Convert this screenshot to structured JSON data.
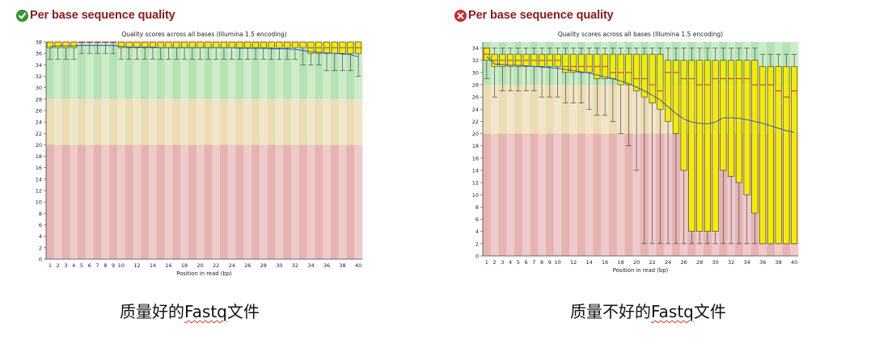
{
  "panels": [
    {
      "status": "pass",
      "status_icon": "check-circle-icon",
      "status_color": "#2e9e2e",
      "header_title": "Per base sequence quality",
      "caption_prefix": "质量好的",
      "caption_keyword": "Fastq",
      "caption_suffix": "文件"
    },
    {
      "status": "fail",
      "status_icon": "cross-circle-icon",
      "status_color": "#d62a2a",
      "header_title": "Per base sequence quality",
      "caption_prefix": "质量不好的",
      "caption_keyword": "Fastq",
      "caption_suffix": "文件"
    }
  ],
  "chart_data": [
    {
      "type": "boxplot",
      "title": "Quality scores across all bases (Illumina 1.5 encoding)",
      "xlabel": "Position in read (bp)",
      "ylabel": "",
      "ylim": [
        0,
        38
      ],
      "yticks": [
        0,
        2,
        4,
        6,
        8,
        10,
        12,
        14,
        16,
        18,
        20,
        22,
        24,
        26,
        28,
        30,
        32,
        34,
        36,
        38
      ],
      "xtick_labels": [
        "1",
        "2",
        "3",
        "4",
        "5",
        "6",
        "7",
        "8",
        "9",
        "10",
        "12",
        "14",
        "16",
        "18",
        "20",
        "22",
        "24",
        "26",
        "28",
        "30",
        "32",
        "34",
        "36",
        "38",
        "40"
      ],
      "bands": [
        {
          "from": 28,
          "to": 38,
          "color": "#b6e3b6",
          "alt": "#cdecc9"
        },
        {
          "from": 20,
          "to": 28,
          "color": "#ecdcb3",
          "alt": "#f1e6c9"
        },
        {
          "from": 0,
          "to": 20,
          "color": "#e6b3b3",
          "alt": "#efcaca"
        }
      ],
      "box_color": "#f5ec00",
      "median_color": "#cc3030",
      "mean_color": "#3048b8",
      "boxes": [
        {
          "low": 35,
          "q1": 37,
          "median": 38,
          "q3": 38,
          "high": 38,
          "mean": 37.2
        },
        {
          "low": 35,
          "q1": 37,
          "median": 38,
          "q3": 38,
          "high": 38,
          "mean": 37.3
        },
        {
          "low": 35,
          "q1": 37,
          "median": 38,
          "q3": 38,
          "high": 38,
          "mean": 37.3
        },
        {
          "low": 35,
          "q1": 37,
          "median": 38,
          "q3": 38,
          "high": 38,
          "mean": 37.3
        },
        {
          "low": 36,
          "q1": 38,
          "median": 38,
          "q3": 38,
          "high": 38,
          "mean": 37.4
        },
        {
          "low": 36,
          "q1": 38,
          "median": 38,
          "q3": 38,
          "high": 38,
          "mean": 37.4
        },
        {
          "low": 36,
          "q1": 38,
          "median": 38,
          "q3": 38,
          "high": 38,
          "mean": 37.4
        },
        {
          "low": 36,
          "q1": 38,
          "median": 38,
          "q3": 38,
          "high": 38,
          "mean": 37.4
        },
        {
          "low": 36,
          "q1": 38,
          "median": 38,
          "q3": 38,
          "high": 38,
          "mean": 37.4
        },
        {
          "low": 35,
          "q1": 37,
          "median": 38,
          "q3": 38,
          "high": 38,
          "mean": 37.2
        },
        {
          "low": 35,
          "q1": 37,
          "median": 38,
          "q3": 38,
          "high": 38,
          "mean": 37.1
        },
        {
          "low": 35,
          "q1": 37,
          "median": 38,
          "q3": 38,
          "high": 38,
          "mean": 37.1
        },
        {
          "low": 35,
          "q1": 37,
          "median": 38,
          "q3": 38,
          "high": 38,
          "mean": 37.1
        },
        {
          "low": 35,
          "q1": 37,
          "median": 38,
          "q3": 38,
          "high": 38,
          "mean": 37.1
        },
        {
          "low": 35,
          "q1": 37,
          "median": 38,
          "q3": 38,
          "high": 38,
          "mean": 37.0
        },
        {
          "low": 35,
          "q1": 37,
          "median": 38,
          "q3": 38,
          "high": 38,
          "mean": 37.0
        },
        {
          "low": 35,
          "q1": 37,
          "median": 38,
          "q3": 38,
          "high": 38,
          "mean": 37.0
        },
        {
          "low": 35,
          "q1": 37,
          "median": 38,
          "q3": 38,
          "high": 38,
          "mean": 37.0
        },
        {
          "low": 35,
          "q1": 37,
          "median": 38,
          "q3": 38,
          "high": 38,
          "mean": 37.0
        },
        {
          "low": 35,
          "q1": 37,
          "median": 38,
          "q3": 38,
          "high": 38,
          "mean": 37.0
        },
        {
          "low": 35,
          "q1": 37,
          "median": 38,
          "q3": 38,
          "high": 38,
          "mean": 37.0
        },
        {
          "low": 35,
          "q1": 37,
          "median": 38,
          "q3": 38,
          "high": 38,
          "mean": 37.0
        },
        {
          "low": 35,
          "q1": 37,
          "median": 38,
          "q3": 38,
          "high": 38,
          "mean": 37.0
        },
        {
          "low": 35,
          "q1": 37,
          "median": 38,
          "q3": 38,
          "high": 38,
          "mean": 37.0
        },
        {
          "low": 35,
          "q1": 37,
          "median": 38,
          "q3": 38,
          "high": 38,
          "mean": 36.9
        },
        {
          "low": 35,
          "q1": 37,
          "median": 38,
          "q3": 38,
          "high": 38,
          "mean": 36.9
        },
        {
          "low": 35,
          "q1": 37,
          "median": 38,
          "q3": 38,
          "high": 38,
          "mean": 36.9
        },
        {
          "low": 35,
          "q1": 37,
          "median": 38,
          "q3": 38,
          "high": 38,
          "mean": 36.9
        },
        {
          "low": 35,
          "q1": 37,
          "median": 38,
          "q3": 38,
          "high": 38,
          "mean": 36.8
        },
        {
          "low": 35,
          "q1": 37,
          "median": 38,
          "q3": 38,
          "high": 38,
          "mean": 36.8
        },
        {
          "low": 35,
          "q1": 37,
          "median": 38,
          "q3": 38,
          "high": 38,
          "mean": 36.8
        },
        {
          "low": 35,
          "q1": 37,
          "median": 38,
          "q3": 38,
          "high": 38,
          "mean": 36.7
        },
        {
          "low": 34,
          "q1": 37,
          "median": 38,
          "q3": 38,
          "high": 38,
          "mean": 36.5
        },
        {
          "low": 34,
          "q1": 36,
          "median": 37,
          "q3": 38,
          "high": 38,
          "mean": 36.3
        },
        {
          "low": 34,
          "q1": 36,
          "median": 37,
          "q3": 38,
          "high": 38,
          "mean": 36.2
        },
        {
          "low": 33,
          "q1": 36,
          "median": 37,
          "q3": 38,
          "high": 38,
          "mean": 36.1
        },
        {
          "low": 33,
          "q1": 36,
          "median": 37,
          "q3": 38,
          "high": 38,
          "mean": 36.0
        },
        {
          "low": 33,
          "q1": 36,
          "median": 37,
          "q3": 38,
          "high": 38,
          "mean": 35.9
        },
        {
          "low": 33,
          "q1": 36,
          "median": 37,
          "q3": 38,
          "high": 38,
          "mean": 35.8
        },
        {
          "low": 32,
          "q1": 36,
          "median": 37,
          "q3": 38,
          "high": 38,
          "mean": 35.4
        }
      ]
    },
    {
      "type": "boxplot",
      "title": "Quality scores across all bases (Illumina 1.5 encoding)",
      "xlabel": "Position in read (bp)",
      "ylabel": "",
      "ylim": [
        0,
        35
      ],
      "yticks": [
        0,
        2,
        4,
        6,
        8,
        10,
        12,
        14,
        16,
        18,
        20,
        22,
        24,
        26,
        28,
        30,
        32,
        34
      ],
      "xtick_labels": [
        "1",
        "2",
        "3",
        "4",
        "5",
        "6",
        "7",
        "8",
        "9",
        "10",
        "12",
        "14",
        "16",
        "18",
        "20",
        "22",
        "24",
        "26",
        "28",
        "30",
        "32",
        "34",
        "36",
        "38",
        "40"
      ],
      "bands": [
        {
          "from": 28,
          "to": 35,
          "color": "#b6e3b6",
          "alt": "#cdecc9"
        },
        {
          "from": 20,
          "to": 28,
          "color": "#ecdcb3",
          "alt": "#f1e6c9"
        },
        {
          "from": 0,
          "to": 20,
          "color": "#e6b3b3",
          "alt": "#efcaca"
        }
      ],
      "box_color": "#f5ec00",
      "median_color": "#cc3030",
      "mean_color": "#3048b8",
      "boxes": [
        {
          "low": 29,
          "q1": 32,
          "median": 33,
          "q3": 34,
          "high": 34,
          "mean": 32.6
        },
        {
          "low": 26,
          "q1": 31,
          "median": 32,
          "q3": 33,
          "high": 34,
          "mean": 31.4
        },
        {
          "low": 27,
          "q1": 31,
          "median": 32,
          "q3": 33,
          "high": 34,
          "mean": 31.3
        },
        {
          "low": 27,
          "q1": 31,
          "median": 32,
          "q3": 33,
          "high": 34,
          "mean": 31.2
        },
        {
          "low": 27,
          "q1": 31,
          "median": 32,
          "q3": 33,
          "high": 34,
          "mean": 31.2
        },
        {
          "low": 27,
          "q1": 31,
          "median": 32,
          "q3": 33,
          "high": 34,
          "mean": 31.1
        },
        {
          "low": 27,
          "q1": 31,
          "median": 32,
          "q3": 33,
          "high": 34,
          "mean": 31.0
        },
        {
          "low": 26,
          "q1": 31,
          "median": 32,
          "q3": 33,
          "high": 34,
          "mean": 30.9
        },
        {
          "low": 26,
          "q1": 31,
          "median": 32,
          "q3": 33,
          "high": 34,
          "mean": 30.8
        },
        {
          "low": 26,
          "q1": 31,
          "median": 32,
          "q3": 33,
          "high": 34,
          "mean": 30.7
        },
        {
          "low": 25,
          "q1": 30,
          "median": 31,
          "q3": 33,
          "high": 34,
          "mean": 30.5
        },
        {
          "low": 25,
          "q1": 30,
          "median": 31,
          "q3": 33,
          "high": 34,
          "mean": 30.3
        },
        {
          "low": 25,
          "q1": 30,
          "median": 31,
          "q3": 33,
          "high": 34,
          "mean": 30.1
        },
        {
          "low": 24,
          "q1": 30,
          "median": 31,
          "q3": 33,
          "high": 34,
          "mean": 29.9
        },
        {
          "low": 23,
          "q1": 29,
          "median": 31,
          "q3": 33,
          "high": 34,
          "mean": 29.6
        },
        {
          "low": 23,
          "q1": 29,
          "median": 31,
          "q3": 33,
          "high": 34,
          "mean": 29.3
        },
        {
          "low": 22,
          "q1": 29,
          "median": 30,
          "q3": 33,
          "high": 34,
          "mean": 29.0
        },
        {
          "low": 20,
          "q1": 28,
          "median": 30,
          "q3": 33,
          "high": 34,
          "mean": 28.6
        },
        {
          "low": 18,
          "q1": 28,
          "median": 30,
          "q3": 33,
          "high": 34,
          "mean": 28.2
        },
        {
          "low": 14,
          "q1": 27,
          "median": 29,
          "q3": 33,
          "high": 34,
          "mean": 27.6
        },
        {
          "low": 2,
          "q1": 26,
          "median": 29,
          "q3": 33,
          "high": 34,
          "mean": 27.0
        },
        {
          "low": 2,
          "q1": 25,
          "median": 28,
          "q3": 33,
          "high": 34,
          "mean": 26.3
        },
        {
          "low": 2,
          "q1": 24,
          "median": 27,
          "q3": 33,
          "high": 34,
          "mean": 25.5
        },
        {
          "low": 2,
          "q1": 22,
          "median": 30,
          "q3": 32,
          "high": 34,
          "mean": 24.4
        },
        {
          "low": 2,
          "q1": 20,
          "median": 30,
          "q3": 32,
          "high": 34,
          "mean": 23.3
        },
        {
          "low": 2,
          "q1": 14,
          "median": 29,
          "q3": 32,
          "high": 34,
          "mean": 22.4
        },
        {
          "low": 2,
          "q1": 4,
          "median": 29,
          "q3": 32,
          "high": 34,
          "mean": 21.9
        },
        {
          "low": 2,
          "q1": 4,
          "median": 28,
          "q3": 32,
          "high": 34,
          "mean": 21.7
        },
        {
          "low": 2,
          "q1": 4,
          "median": 28,
          "q3": 32,
          "high": 34,
          "mean": 21.6
        },
        {
          "low": 2,
          "q1": 4,
          "median": 29,
          "q3": 32,
          "high": 34,
          "mean": 21.9
        },
        {
          "low": 2,
          "q1": 14,
          "median": 29,
          "q3": 32,
          "high": 34,
          "mean": 22.6
        },
        {
          "low": 2,
          "q1": 13,
          "median": 29,
          "q3": 32,
          "high": 34,
          "mean": 22.6
        },
        {
          "low": 2,
          "q1": 12,
          "median": 29,
          "q3": 32,
          "high": 34,
          "mean": 22.5
        },
        {
          "low": 2,
          "q1": 10,
          "median": 29,
          "q3": 32,
          "high": 34,
          "mean": 22.3
        },
        {
          "low": 2,
          "q1": 7,
          "median": 28,
          "q3": 32,
          "high": 34,
          "mean": 22.0
        },
        {
          "low": 2,
          "q1": 2,
          "median": 28,
          "q3": 31,
          "high": 33,
          "mean": 21.7
        },
        {
          "low": 2,
          "q1": 2,
          "median": 28,
          "q3": 31,
          "high": 33,
          "mean": 21.3
        },
        {
          "low": 2,
          "q1": 2,
          "median": 27,
          "q3": 31,
          "high": 33,
          "mean": 20.9
        },
        {
          "low": 2,
          "q1": 2,
          "median": 26,
          "q3": 31,
          "high": 33,
          "mean": 20.5
        },
        {
          "low": 2,
          "q1": 2,
          "median": 27,
          "q3": 31,
          "high": 33,
          "mean": 20.2
        }
      ]
    }
  ]
}
